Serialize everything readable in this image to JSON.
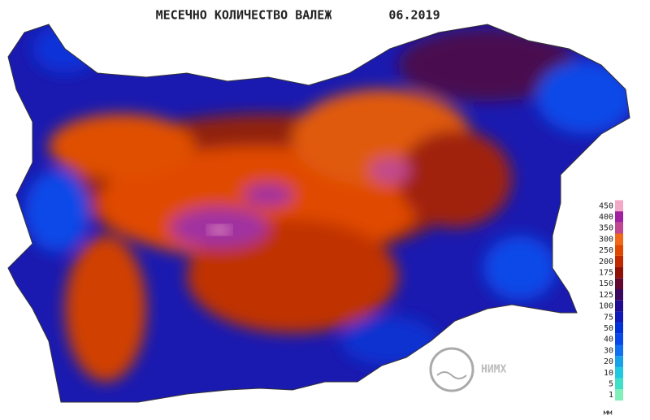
{
  "header": {
    "title": "МЕСЕЧНО КОЛИЧЕСТВО ВАЛЕЖ",
    "date": "06.2019"
  },
  "legend": {
    "unit": "мм",
    "levels": [
      {
        "value": 1,
        "color": "#80f0b8"
      },
      {
        "value": 5,
        "color": "#40e0c8"
      },
      {
        "value": 10,
        "color": "#20c8e0"
      },
      {
        "value": 20,
        "color": "#18a0e8"
      },
      {
        "value": 30,
        "color": "#1070f0"
      },
      {
        "value": 40,
        "color": "#0848e8"
      },
      {
        "value": 50,
        "color": "#0030d8"
      },
      {
        "value": 75,
        "color": "#1018b8"
      },
      {
        "value": 100,
        "color": "#200c90"
      },
      {
        "value": 125,
        "color": "#3a0860"
      },
      {
        "value": 150,
        "color": "#600830"
      },
      {
        "value": 175,
        "color": "#901008"
      },
      {
        "value": 200,
        "color": "#c02800"
      },
      {
        "value": 250,
        "color": "#e04800"
      },
      {
        "value": 300,
        "color": "#f06818"
      },
      {
        "value": 350,
        "color": "#c04890"
      },
      {
        "value": 400,
        "color": "#a020a0"
      },
      {
        "value": 450,
        "color": "#f4a8c8"
      }
    ]
  },
  "logo": {
    "text": "НИМХ"
  }
}
